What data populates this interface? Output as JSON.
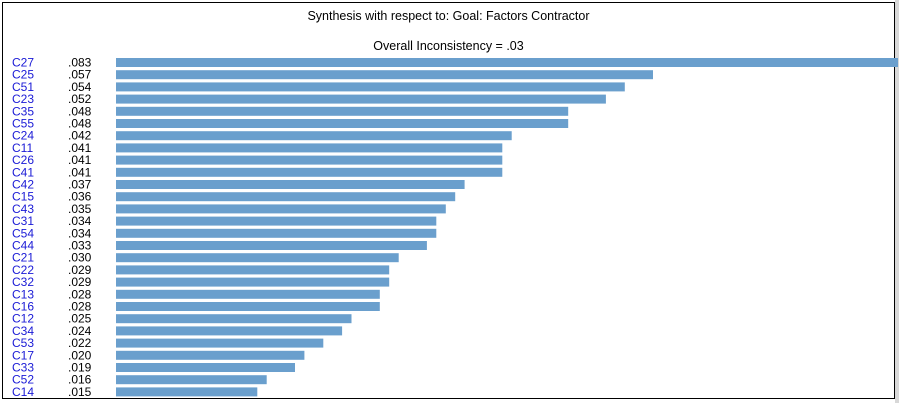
{
  "window": {
    "title": "Synthesis with respect to: Goal: Factors Contractor",
    "inconsistency": "Overall Inconsistency = .03"
  },
  "colors": {
    "bar": "#6a9fcd",
    "category_label": "#1a1ad6",
    "value_label": "#000000"
  },
  "chart_data": {
    "type": "bar",
    "orientation": "horizontal",
    "title": "Synthesis with respect to: Goal: Factors Contractor",
    "subtitle": "Overall Inconsistency = .03",
    "categories": [
      "C27",
      "C25",
      "C51",
      "C23",
      "C35",
      "C55",
      "C24",
      "C11",
      "C26",
      "C41",
      "C42",
      "C15",
      "C43",
      "C31",
      "C54",
      "C44",
      "C21",
      "C22",
      "C32",
      "C13",
      "C16",
      "C12",
      "C34",
      "C53",
      "C17",
      "C33",
      "C52",
      "C14"
    ],
    "value_labels": [
      ".083",
      ".057",
      ".054",
      ".052",
      ".048",
      ".048",
      ".042",
      ".041",
      ".041",
      ".041",
      ".037",
      ".036",
      ".035",
      ".034",
      ".034",
      ".033",
      ".030",
      ".029",
      ".029",
      ".028",
      ".028",
      ".025",
      ".024",
      ".022",
      ".020",
      ".019",
      ".016",
      ".015"
    ],
    "values": [
      0.083,
      0.057,
      0.054,
      0.052,
      0.048,
      0.048,
      0.042,
      0.041,
      0.041,
      0.041,
      0.037,
      0.036,
      0.035,
      0.034,
      0.034,
      0.033,
      0.03,
      0.029,
      0.029,
      0.028,
      0.028,
      0.025,
      0.024,
      0.022,
      0.02,
      0.019,
      0.016,
      0.015
    ],
    "xlim": [
      0,
      0.083
    ],
    "grid": false,
    "legend": "none"
  }
}
